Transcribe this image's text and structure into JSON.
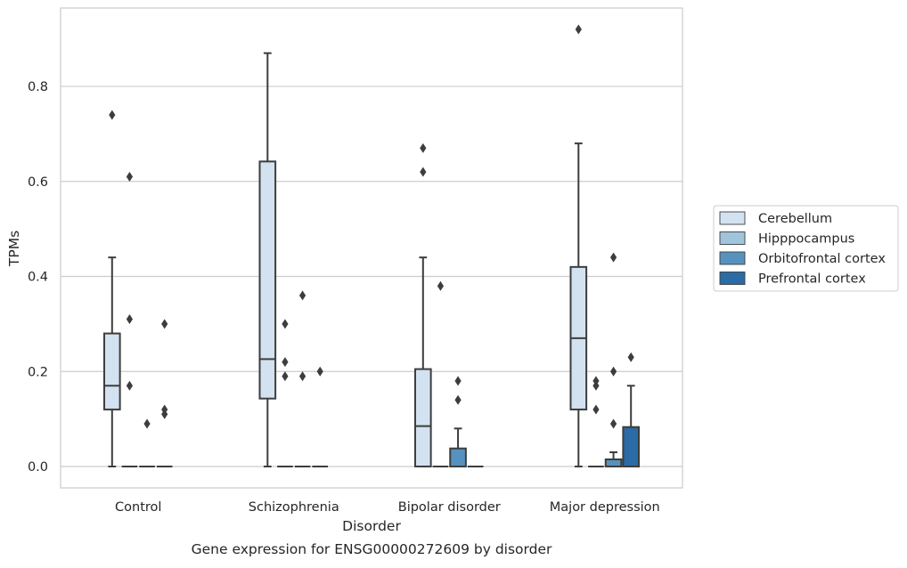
{
  "chart_data": {
    "type": "box",
    "caption": "Gene expression for ENSG00000272609 by disorder",
    "xlabel": "Disorder",
    "ylabel": "TPMs",
    "categories": [
      "Control",
      "Schizophrenia",
      "Bipolar disorder",
      "Major depression"
    ],
    "ylim": [
      -0.045,
      0.965
    ],
    "yticks": [
      0.0,
      0.2,
      0.4,
      0.6,
      0.8
    ],
    "ytick_labels": [
      "0.0",
      "0.2",
      "0.4",
      "0.6",
      "0.8"
    ],
    "grid": "horizontal",
    "legend_position": "right",
    "series": [
      {
        "name": "Cerebellum",
        "color": "#d3e2f1",
        "boxes": [
          {
            "whislo": 0.0,
            "q1": 0.12,
            "med": 0.17,
            "q3": 0.28,
            "whishi": 0.44,
            "fliers": [
              0.74
            ]
          },
          {
            "whislo": 0.0,
            "q1": 0.143,
            "med": 0.226,
            "q3": 0.642,
            "whishi": 0.87,
            "fliers": []
          },
          {
            "whislo": 0.0,
            "q1": 0.0,
            "med": 0.085,
            "q3": 0.205,
            "whishi": 0.44,
            "fliers": [
              0.67,
              0.62
            ]
          },
          {
            "whislo": 0.0,
            "q1": 0.12,
            "med": 0.27,
            "q3": 0.42,
            "whishi": 0.68,
            "fliers": [
              0.92
            ]
          }
        ]
      },
      {
        "name": "Hipppocampus",
        "color": "#a1c4dd",
        "boxes": [
          {
            "whislo": 0.0,
            "q1": 0.0,
            "med": 0.0,
            "q3": 0.0,
            "whishi": 0.0,
            "fliers": [
              0.61,
              0.31,
              0.17
            ]
          },
          {
            "whislo": 0.0,
            "q1": 0.0,
            "med": 0.0,
            "q3": 0.0,
            "whishi": 0.0,
            "fliers": [
              0.3,
              0.22,
              0.19
            ]
          },
          {
            "whislo": 0.0,
            "q1": 0.0,
            "med": 0.0,
            "q3": 0.0,
            "whishi": 0.0,
            "fliers": [
              0.38
            ]
          },
          {
            "whislo": 0.0,
            "q1": 0.0,
            "med": 0.0,
            "q3": 0.0,
            "whishi": 0.0,
            "fliers": [
              0.18,
              0.17,
              0.12
            ]
          }
        ]
      },
      {
        "name": "Orbitofrontal cortex",
        "color": "#5792bf",
        "boxes": [
          {
            "whislo": 0.0,
            "q1": 0.0,
            "med": 0.0,
            "q3": 0.0,
            "whishi": 0.0,
            "fliers": [
              0.09
            ]
          },
          {
            "whislo": 0.0,
            "q1": 0.0,
            "med": 0.0,
            "q3": 0.0,
            "whishi": 0.0,
            "fliers": [
              0.36,
              0.19
            ]
          },
          {
            "whislo": 0.0,
            "q1": 0.0,
            "med": 0.0,
            "q3": 0.038,
            "whishi": 0.08,
            "fliers": [
              0.18,
              0.14
            ]
          },
          {
            "whislo": 0.0,
            "q1": 0.0,
            "med": 0.0,
            "q3": 0.015,
            "whishi": 0.03,
            "fliers": [
              0.44,
              0.2,
              0.09
            ]
          }
        ]
      },
      {
        "name": "Prefrontal cortex",
        "color": "#2b6ba6",
        "boxes": [
          {
            "whislo": 0.0,
            "q1": 0.0,
            "med": 0.0,
            "q3": 0.0,
            "whishi": 0.0,
            "fliers": [
              0.3,
              0.12,
              0.11
            ]
          },
          {
            "whislo": 0.0,
            "q1": 0.0,
            "med": 0.0,
            "q3": 0.0,
            "whishi": 0.0,
            "fliers": [
              0.2
            ]
          },
          {
            "whislo": 0.0,
            "q1": 0.0,
            "med": 0.0,
            "q3": 0.0,
            "whishi": 0.0,
            "fliers": []
          },
          {
            "whislo": 0.0,
            "q1": 0.0,
            "med": 0.0,
            "q3": 0.083,
            "whishi": 0.17,
            "fliers": [
              0.23
            ]
          }
        ]
      }
    ]
  },
  "colors": {
    "grid": "#cccccc",
    "frame": "#cccccc",
    "box_edge": "#3d3d3d",
    "background": "#ffffff"
  }
}
